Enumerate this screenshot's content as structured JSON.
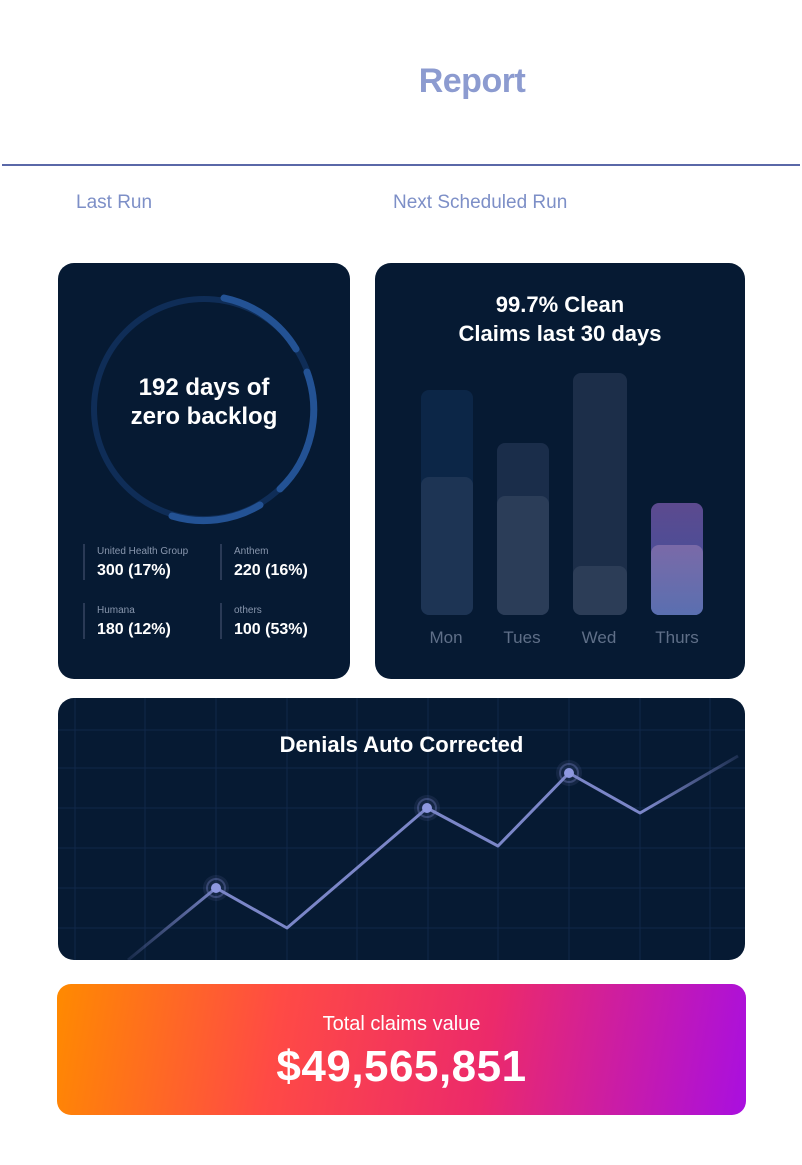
{
  "header": {
    "title": "Report",
    "last_run_label": "Last Run",
    "next_run_label": "Next Scheduled Run"
  },
  "backlog_card": {
    "headline": "192 days of zero backlog",
    "stats": [
      {
        "label": "United Health Group",
        "value": "300 (17%)"
      },
      {
        "label": "Anthem",
        "value": "220 (16%)"
      },
      {
        "label": "Humana",
        "value": "180 (12%)"
      },
      {
        "label": "others",
        "value": "100 (53%)"
      }
    ]
  },
  "clean_claims_card": {
    "title_line1": "99.7% Clean",
    "title_line2": "Claims last 30 days",
    "days": [
      "Mon",
      "Tues",
      "Wed",
      "Thurs"
    ]
  },
  "denials_card": {
    "title": "Denials Auto Corrected"
  },
  "total_card": {
    "label": "Total claims value",
    "value": "$49,565,851"
  },
  "colors": {
    "card_bg": "#061a33",
    "title": "#8c9bd0",
    "ring": "#1f4c8c",
    "line": "#7b86c8",
    "gradient_start": "#ff8a00",
    "gradient_end": "#a90fe0"
  }
}
